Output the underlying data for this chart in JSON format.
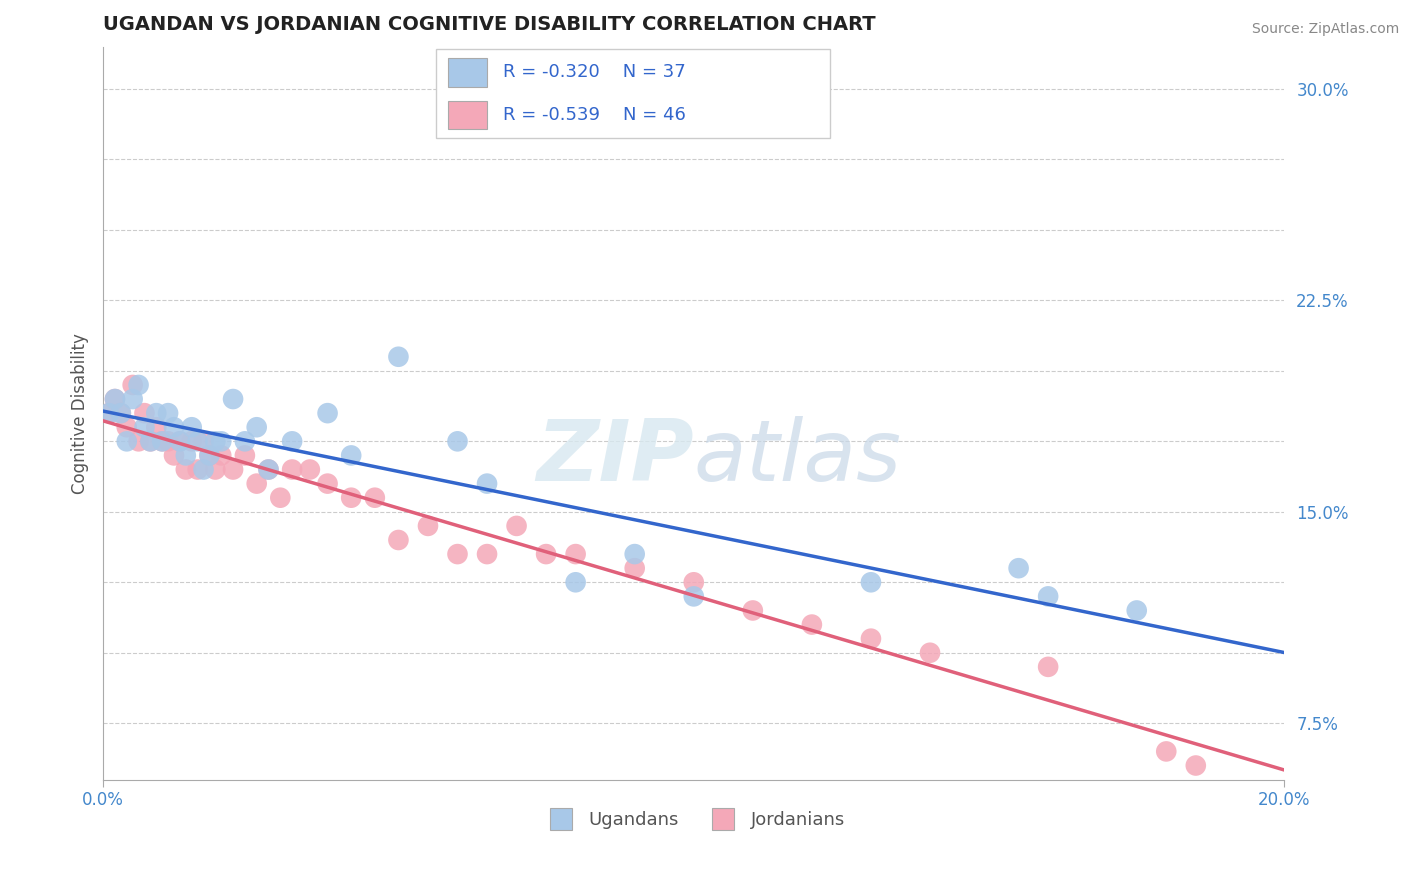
{
  "title": "UGANDAN VS JORDANIAN COGNITIVE DISABILITY CORRELATION CHART",
  "source": "Source: ZipAtlas.com",
  "ylabel": "Cognitive Disability",
  "background_color": "#ffffff",
  "grid_color": "#cccccc",
  "watermark": "ZIPatlas",
  "ugandan_color": "#a8c8e8",
  "jordanian_color": "#f4a8b8",
  "ugandan_line_color": "#3366cc",
  "jordanian_line_color": "#e0607a",
  "legend_text_color": "#3366cc",
  "legend_R_ugandan": "R = -0.320",
  "legend_N_ugandan": "N = 37",
  "legend_R_jordanian": "R = -0.539",
  "legend_N_jordanian": "N = 46",
  "xlim": [
    0.0,
    0.2
  ],
  "ylim": [
    0.055,
    0.315
  ],
  "ytick_vals": [
    0.075,
    0.1,
    0.125,
    0.15,
    0.175,
    0.2,
    0.225,
    0.25,
    0.275,
    0.3
  ],
  "ytick_labels": [
    "7.5%",
    "",
    "",
    "15.0%",
    "",
    "",
    "22.5%",
    "",
    "",
    "30.0%"
  ],
  "xtick_vals": [
    0.0,
    0.2
  ],
  "xtick_labels": [
    "0.0%",
    "20.0%"
  ],
  "ugandan_x": [
    0.001,
    0.002,
    0.003,
    0.004,
    0.005,
    0.006,
    0.007,
    0.008,
    0.009,
    0.01,
    0.011,
    0.012,
    0.013,
    0.014,
    0.015,
    0.016,
    0.017,
    0.018,
    0.019,
    0.02,
    0.022,
    0.024,
    0.026,
    0.028,
    0.032,
    0.038,
    0.042,
    0.05,
    0.06,
    0.065,
    0.08,
    0.09,
    0.1,
    0.13,
    0.155,
    0.16,
    0.175
  ],
  "ugandan_y": [
    0.185,
    0.19,
    0.185,
    0.175,
    0.19,
    0.195,
    0.18,
    0.175,
    0.185,
    0.175,
    0.185,
    0.18,
    0.175,
    0.17,
    0.18,
    0.175,
    0.165,
    0.17,
    0.175,
    0.175,
    0.19,
    0.175,
    0.18,
    0.165,
    0.175,
    0.185,
    0.17,
    0.205,
    0.175,
    0.16,
    0.125,
    0.135,
    0.12,
    0.125,
    0.13,
    0.12,
    0.115
  ],
  "jordanian_x": [
    0.001,
    0.002,
    0.003,
    0.004,
    0.005,
    0.006,
    0.007,
    0.008,
    0.009,
    0.01,
    0.011,
    0.012,
    0.013,
    0.014,
    0.015,
    0.016,
    0.017,
    0.018,
    0.019,
    0.02,
    0.022,
    0.024,
    0.026,
    0.028,
    0.03,
    0.032,
    0.035,
    0.038,
    0.042,
    0.046,
    0.05,
    0.055,
    0.06,
    0.065,
    0.07,
    0.075,
    0.08,
    0.09,
    0.1,
    0.11,
    0.12,
    0.13,
    0.14,
    0.16,
    0.18,
    0.185
  ],
  "jordanian_y": [
    0.185,
    0.19,
    0.185,
    0.18,
    0.195,
    0.175,
    0.185,
    0.175,
    0.18,
    0.175,
    0.175,
    0.17,
    0.175,
    0.165,
    0.175,
    0.165,
    0.175,
    0.17,
    0.165,
    0.17,
    0.165,
    0.17,
    0.16,
    0.165,
    0.155,
    0.165,
    0.165,
    0.16,
    0.155,
    0.155,
    0.14,
    0.145,
    0.135,
    0.135,
    0.145,
    0.135,
    0.135,
    0.13,
    0.125,
    0.115,
    0.11,
    0.105,
    0.1,
    0.095,
    0.065,
    0.06
  ]
}
